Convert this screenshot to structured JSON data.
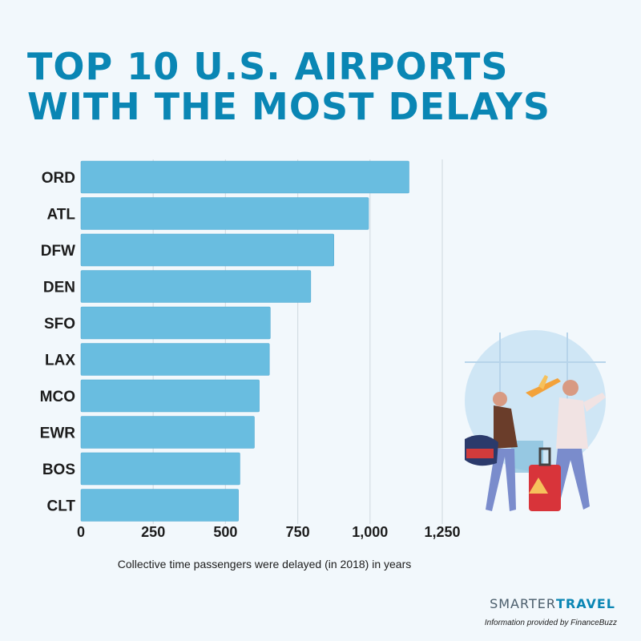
{
  "title_lines": [
    "TOP 10 U.S. AIRPORTS",
    "WITH THE MOST DELAYS"
  ],
  "chart_data": {
    "type": "bar",
    "orientation": "horizontal",
    "categories": [
      "ORD",
      "ATL",
      "DFW",
      "DEN",
      "SFO",
      "LAX",
      "MCO",
      "EWR",
      "BOS",
      "CLT"
    ],
    "values": [
      1135,
      995,
      875,
      795,
      655,
      652,
      617,
      600,
      550,
      545
    ],
    "xlim": [
      0,
      1250
    ],
    "xticks": [
      0,
      250,
      500,
      750,
      1000,
      1250
    ],
    "xtick_labels": [
      "0",
      "250",
      "500",
      "750",
      "1,000",
      "1,250"
    ],
    "xlabel": "Collective time passengers were delayed (in 2018) in years",
    "grid": true,
    "bar_color": "#69bde0"
  },
  "brand": {
    "part1": "SMARTER",
    "part2": "TRAVEL"
  },
  "credit": "Information provided by FinanceBuzz",
  "colors": {
    "title": "#0a86b4",
    "background": "#f2f8fc"
  }
}
